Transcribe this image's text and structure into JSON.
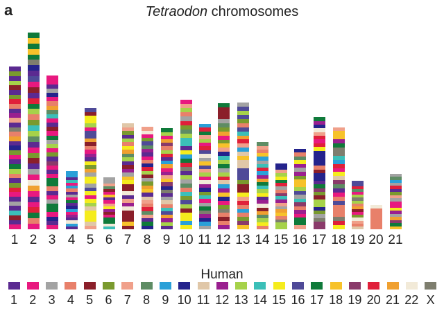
{
  "panel_label": "a",
  "title": {
    "species": "Tetraodon",
    "rest": " chromosomes"
  },
  "legend": {
    "title": "Human",
    "items": [
      {
        "label": "1",
        "color": "#5b2a91"
      },
      {
        "label": "2",
        "color": "#e8197f"
      },
      {
        "label": "3",
        "color": "#a3a3a3"
      },
      {
        "label": "4",
        "color": "#e8806a"
      },
      {
        "label": "5",
        "color": "#8b1f2a"
      },
      {
        "label": "6",
        "color": "#7a9a2e"
      },
      {
        "label": "7",
        "color": "#f0a08a"
      },
      {
        "label": "8",
        "color": "#5e8c64"
      },
      {
        "label": "9",
        "color": "#2aa0d8"
      },
      {
        "label": "10",
        "color": "#24238c"
      },
      {
        "label": "11",
        "color": "#e0c7a8"
      },
      {
        "label": "12",
        "color": "#9a1f8f"
      },
      {
        "label": "13",
        "color": "#a6d24a"
      },
      {
        "label": "14",
        "color": "#3bbfb8"
      },
      {
        "label": "15",
        "color": "#f5ec1d"
      },
      {
        "label": "16",
        "color": "#4f4a98"
      },
      {
        "label": "17",
        "color": "#0f7a3a"
      },
      {
        "label": "18",
        "color": "#f7c22a"
      },
      {
        "label": "19",
        "color": "#8a3a6a"
      },
      {
        "label": "20",
        "color": "#e0203a"
      },
      {
        "label": "21",
        "color": "#f0a030"
      },
      {
        "label": "22",
        "color": "#f2ead8"
      },
      {
        "label": "X",
        "color": "#7e7e6e"
      }
    ]
  },
  "chromosomes": [
    {
      "label": "1",
      "top_fraction": 0.826,
      "bands": [
        0,
        5,
        0,
        12,
        4,
        0,
        5,
        19,
        3,
        0,
        11,
        6,
        0,
        22,
        3,
        20,
        0,
        9,
        5,
        1,
        0,
        16,
        12,
        3,
        0,
        5,
        19,
        1,
        0,
        2,
        0,
        13,
        4,
        0,
        1
      ]
    },
    {
      "label": "2",
      "top_fraction": 1.0,
      "bands": [
        16,
        17,
        16,
        17,
        16,
        22,
        9,
        0,
        15,
        1,
        4,
        0,
        19,
        16,
        12,
        3,
        5,
        13,
        12,
        7,
        0,
        1,
        5,
        4,
        0,
        2,
        1,
        21,
        20,
        1,
        0,
        1,
        19,
        16,
        3,
        1
      ]
    },
    {
      "label": "3",
      "top_fraction": 0.78,
      "bands": [
        1,
        1,
        0,
        2,
        9,
        1,
        3,
        20,
        7,
        13,
        1,
        0,
        4,
        1,
        16,
        2,
        12,
        1,
        5,
        0,
        18,
        1,
        0,
        1,
        16,
        16,
        3,
        0,
        1,
        2,
        16,
        16,
        1,
        9,
        0,
        1
      ]
    },
    {
      "label": "4",
      "top_fraction": 0.295,
      "bands": [
        8,
        8,
        0,
        13,
        1,
        8,
        3,
        0,
        2,
        1,
        16,
        0,
        9,
        8,
        1,
        11,
        0,
        21,
        8,
        0
      ]
    },
    {
      "label": "5",
      "top_fraction": 0.615,
      "bands": [
        15,
        4,
        14,
        14,
        12,
        1,
        15,
        15,
        20,
        4,
        3,
        1,
        11,
        0,
        14,
        5,
        20,
        2,
        14,
        14,
        2,
        15,
        14,
        1,
        14,
        12,
        10,
        14,
        14,
        14,
        10,
        6
      ]
    },
    {
      "label": "6",
      "top_fraction": 0.263,
      "bands": [
        2,
        2,
        6,
        7,
        4,
        1,
        17,
        0,
        1,
        6,
        14,
        11,
        4,
        1,
        16,
        16,
        21,
        13
      ]
    },
    {
      "label": "7",
      "top_fraction": 0.538,
      "bands": [
        10,
        6,
        5,
        0,
        12,
        3,
        14,
        20,
        7,
        12,
        0,
        4,
        11,
        2,
        17,
        14,
        4,
        4,
        21,
        0,
        6,
        11,
        21,
        4,
        4,
        4,
        17,
        4
      ]
    },
    {
      "label": "8",
      "top_fraction": 0.52,
      "bands": [
        6,
        21,
        1,
        5,
        15,
        7,
        11,
        0,
        1,
        3,
        9,
        19,
        12,
        4,
        2,
        5,
        20,
        17,
        0,
        10,
        6,
        3,
        19,
        7,
        6,
        0,
        16,
        9
      ]
    },
    {
      "label": "9",
      "top_fraction": 0.513,
      "bands": [
        16,
        12,
        1,
        20,
        18,
        3,
        12,
        19,
        0,
        8,
        20,
        1,
        11,
        6,
        17,
        18,
        9,
        22,
        0,
        2,
        10,
        3,
        13,
        15,
        20,
        11,
        12,
        0
      ]
    },
    {
      "label": "10",
      "top_fraction": 0.657,
      "bands": [
        1,
        6,
        12,
        3,
        2,
        19,
        5,
        7,
        12,
        13,
        13,
        0,
        14,
        8,
        16,
        19,
        22,
        0,
        12,
        2,
        7,
        3,
        13,
        5,
        15,
        12,
        4,
        14,
        14,
        8,
        14
      ]
    },
    {
      "label": "11",
      "top_fraction": 0.536,
      "bands": [
        8,
        19,
        16,
        6,
        12,
        1,
        19,
        15,
        21,
        2,
        17,
        15,
        6,
        12,
        1,
        21,
        11,
        9,
        5,
        13,
        1,
        2,
        16,
        22,
        11,
        9,
        8,
        2
      ]
    },
    {
      "label": "12",
      "top_fraction": 0.642,
      "bands": [
        16,
        4,
        4,
        4,
        2,
        7,
        5,
        20,
        1,
        5,
        17,
        6,
        9,
        13,
        12,
        16,
        2,
        12,
        19,
        10,
        8,
        11,
        17,
        9,
        1,
        5,
        22,
        3,
        4,
        3,
        11
      ]
    },
    {
      "label": "13",
      "top_fraction": 0.643,
      "bands": [
        2,
        15,
        12,
        15,
        5,
        3,
        15,
        13,
        20,
        19,
        6,
        8,
        10,
        17,
        10,
        10,
        15,
        15,
        15,
        5,
        4,
        4,
        14,
        6,
        19,
        3,
        8,
        3,
        5,
        18,
        17
      ]
    },
    {
      "label": "14",
      "top_fraction": 0.442,
      "bands": [
        7,
        6,
        3,
        17,
        8,
        2,
        13,
        19,
        8,
        11,
        20,
        16,
        13,
        12,
        14,
        0,
        11,
        21,
        4,
        20,
        7,
        12,
        14,
        3
      ]
    },
    {
      "label": "15",
      "top_fraction": 0.335,
      "bands": [
        9,
        9,
        6,
        12,
        14,
        16,
        19,
        2,
        3,
        18,
        13,
        11,
        6,
        2,
        20,
        17,
        3,
        22,
        12,
        12
      ]
    },
    {
      "label": "16",
      "top_fraction": 0.409,
      "bands": [
        9,
        3,
        7,
        14,
        11,
        2,
        11,
        5,
        17,
        17,
        12,
        15,
        2,
        13,
        18,
        3,
        11,
        1,
        16,
        16,
        6
      ]
    },
    {
      "label": "17",
      "top_fraction": 0.57,
      "bands": [
        16,
        11,
        9,
        21,
        6,
        19,
        1,
        19,
        14,
        9,
        9,
        9,
        9,
        3,
        4,
        9,
        9,
        0,
        16,
        18,
        5,
        4,
        12,
        12,
        9,
        5,
        2,
        22,
        18,
        18
      ]
    },
    {
      "label": "18",
      "top_fraction": 0.519,
      "bands": [
        6,
        17,
        17,
        11,
        16,
        22,
        22,
        13,
        8,
        19,
        1,
        14,
        10,
        18,
        7,
        0,
        1,
        3,
        15,
        3,
        3,
        3,
        22,
        19,
        14
      ]
    },
    {
      "label": "19",
      "top_fraction": 0.248,
      "bands": [
        15,
        15,
        19,
        7,
        1,
        12,
        22,
        12,
        3,
        20,
        4,
        1,
        5,
        21,
        6,
        3,
        10
      ]
    },
    {
      "label": "20",
      "top_fraction": 0.122,
      "bands": [
        21,
        3,
        3,
        3,
        3,
        3,
        3,
        3
      ]
    },
    {
      "label": "21",
      "top_fraction": 0.283,
      "bands": [
        2,
        7,
        8,
        2,
        19,
        0,
        5,
        6,
        2,
        1,
        1,
        14,
        11,
        2,
        20,
        18,
        16,
        17
      ]
    }
  ]
}
